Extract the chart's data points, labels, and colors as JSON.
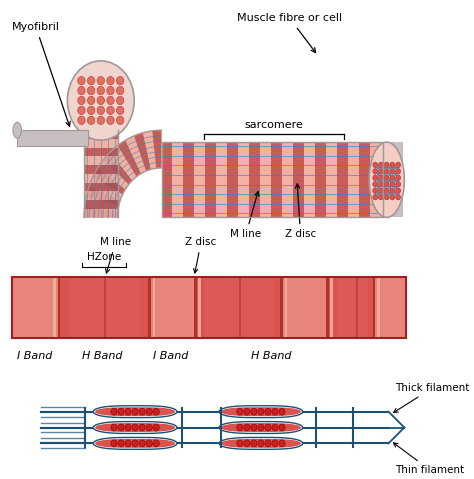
{
  "bg_color": "#ffffff",
  "salmon_light": "#f2b5a8",
  "salmon_dark": "#d9534f",
  "salmon_mid": "#e07060",
  "salmon_fill": "#e8857a",
  "light_pink": "#f5cdc5",
  "very_light_pink": "#fae8e4",
  "blue_line": "#1a5276",
  "blue_mid": "#2e86c1",
  "blue_light": "#aed6f1",
  "gray_fiber": "#b0a8a8",
  "gray_light": "#c8c0c0",
  "gray_mid": "#a09898",
  "red_dot": "#cc2020",
  "red_dark": "#8b0000",
  "text_color": "#000000",
  "stripe_dark": "#c0453f",
  "stripe_light": "#f0a898",
  "labels": {
    "myofibril": "Myofibril",
    "muscle_fibre": "Muscle fibre or cell",
    "sarcomere": "sarcomere",
    "m_line": "M line",
    "z_disc": "Z disc",
    "hzone": "HZone",
    "i_band1": "I Band",
    "h_band1": "H Band",
    "i_band2": "I Band",
    "h_band2": "H Band",
    "thick_filament": "Thick filament",
    "thin_filament": "Thin filament"
  }
}
